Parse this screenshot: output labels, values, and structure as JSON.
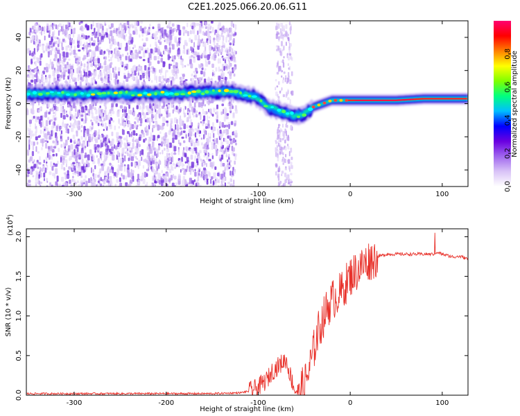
{
  "title": "C2E1.2025.066.20.06.G11",
  "chart_data": [
    {
      "type": "heatmap",
      "xlabel": "Height of straight line (km)",
      "ylabel": "Frequency (Hz)",
      "xlim": [
        -352,
        128
      ],
      "ylim": [
        -50,
        50
      ],
      "xticks": [
        -300,
        -200,
        -100,
        0,
        100
      ],
      "xtick_labels": [
        "-300",
        "-200",
        "-100",
        "0",
        "100"
      ],
      "yticks": [
        -40,
        -20,
        0,
        20,
        40
      ],
      "ytick_labels": [
        "-40",
        "-20",
        "0",
        "20",
        "40"
      ],
      "colorbar": {
        "label": "Normalized spectral amplitude",
        "range": [
          0,
          1
        ],
        "ticks": [
          0.0,
          0.2,
          0.4,
          0.6,
          0.8
        ],
        "tick_labels": [
          "0.0",
          "0.2",
          "0.4",
          "0.6",
          "0.8"
        ],
        "colors": [
          "#ffffff",
          "#d9c3f7",
          "#a066ee",
          "#6a00e0",
          "#0000ff",
          "#00bfff",
          "#00ff80",
          "#7fff00",
          "#ffff00",
          "#ff8000",
          "#ff0000",
          "#ff0070"
        ]
      },
      "ridge": {
        "x": [
          -352,
          -300,
          -250,
          -200,
          -150,
          -125,
          -110,
          -100,
          -90,
          -80,
          -70,
          -60,
          -55,
          -50,
          -45,
          -40,
          -30,
          -20,
          -10,
          0,
          20,
          50,
          80,
          100,
          128
        ],
        "y": [
          6,
          6,
          6,
          6,
          7,
          7,
          5,
          3,
          -2,
          -4,
          -6,
          -7,
          -7,
          -6,
          -4,
          -2,
          0,
          2,
          2,
          2,
          2,
          2,
          3,
          3,
          3
        ]
      }
    },
    {
      "type": "line",
      "xlabel": "Height of straight line (km)",
      "ylabel": "SNR (10 * v/v)",
      "y_multiplier": "(x10^4)",
      "xlim": [
        -352,
        128
      ],
      "ylim": [
        0,
        2.1
      ],
      "xticks": [
        -300,
        -200,
        -100,
        0,
        100
      ],
      "xtick_labels": [
        "-300",
        "-200",
        "-100",
        "0",
        "100"
      ],
      "yticks": [
        0.0,
        0.5,
        1.0,
        1.5,
        2.0
      ],
      "ytick_labels": [
        "0.0",
        "0.5",
        "1.0",
        "1.5",
        "2.0"
      ],
      "color": "#e8312a",
      "series": [
        {
          "x": [
            -352,
            -300,
            -250,
            -200,
            -150,
            -120,
            -110,
            -100,
            -95,
            -90,
            -85,
            -80,
            -75,
            -70,
            -65,
            -60,
            -55,
            -50,
            -45,
            -40,
            -35,
            -30,
            -25,
            -20,
            -15,
            -10,
            -5,
            0,
            5,
            10,
            15,
            20,
            25,
            30,
            40,
            50,
            60,
            70,
            80,
            90,
            95,
            100,
            110,
            120,
            128
          ],
          "y": [
            0.02,
            0.02,
            0.02,
            0.02,
            0.02,
            0.03,
            0.05,
            0.1,
            0.15,
            0.2,
            0.3,
            0.35,
            0.4,
            0.45,
            0.25,
            0.06,
            0.05,
            0.12,
            0.3,
            0.55,
            0.8,
            0.95,
            1.1,
            1.2,
            1.25,
            1.3,
            1.4,
            1.5,
            1.55,
            1.6,
            1.65,
            1.7,
            1.72,
            1.75,
            1.78,
            1.78,
            1.78,
            1.78,
            1.78,
            1.78,
            1.8,
            1.78,
            1.75,
            1.75,
            1.72
          ]
        }
      ]
    }
  ]
}
